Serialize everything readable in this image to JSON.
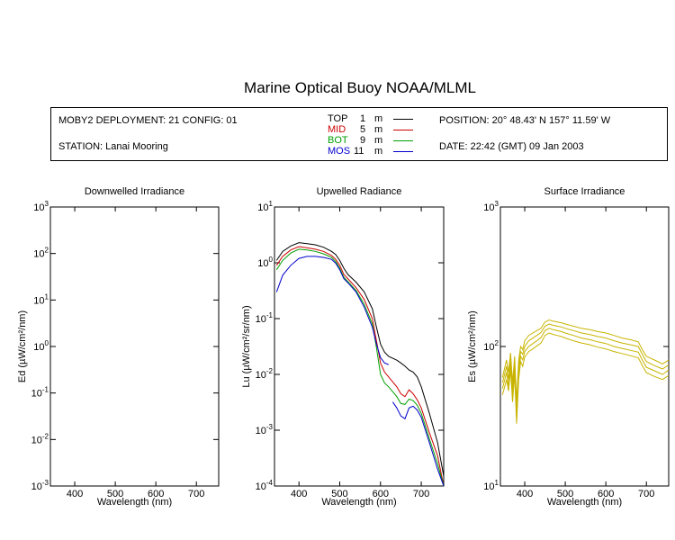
{
  "title": "Marine Optical Buoy NOAA/MLML",
  "info": {
    "deployment": "MOBY2 DEPLOYMENT: 21 CONFIG: 01",
    "station": "STATION: Lanai Mooring",
    "position": "POSITION: 20° 48.43' N   157° 11.59' W",
    "date": "DATE: 22:42 (GMT) 09 Jan 2003",
    "legend": [
      {
        "name": "TOP",
        "depth": "1",
        "unit": "m",
        "color": "#000000"
      },
      {
        "name": "MID",
        "depth": "5",
        "unit": "m",
        "color": "#cc0000"
      },
      {
        "name": "BOT",
        "depth": "9",
        "unit": "m",
        "color": "#00a000"
      },
      {
        "name": "MOS",
        "depth": "11",
        "unit": "m",
        "color": "#0000cc"
      }
    ]
  },
  "chart_data": [
    {
      "type": "line",
      "title": "Downwelled Irradiance",
      "xlabel": "Wavelength (nm)",
      "ylabel": "Ed  (µW/cm²/nm)",
      "yscale": "log",
      "xlim": [
        340,
        755
      ],
      "ylim": [
        0.001,
        1000
      ],
      "xticks": [
        400,
        500,
        600,
        700
      ],
      "yticks": [
        0.001,
        0.01,
        0.1,
        1,
        10,
        100,
        1000
      ],
      "ytick_labels": [
        [
          "10",
          "-3"
        ],
        [
          "10",
          "-2"
        ],
        [
          "10",
          "-1"
        ],
        [
          "10",
          "0"
        ],
        [
          "10",
          "1"
        ],
        [
          "10",
          "2"
        ],
        [
          "10",
          "3"
        ]
      ],
      "series": []
    },
    {
      "type": "line",
      "title": "Upwelled Radiance",
      "xlabel": "Wavelength (nm)",
      "ylabel": "Lu  (µW/cm²/sr/nm)",
      "yscale": "log",
      "xlim": [
        340,
        755
      ],
      "ylim": [
        0.0001,
        10
      ],
      "xticks": [
        400,
        500,
        600,
        700
      ],
      "yticks": [
        0.0001,
        0.001,
        0.01,
        0.1,
        1,
        10
      ],
      "ytick_labels": [
        [
          "10",
          "-4"
        ],
        [
          "10",
          "-3"
        ],
        [
          "10",
          "-2"
        ],
        [
          "10",
          "-1"
        ],
        [
          "10",
          "0"
        ],
        [
          "10",
          "1"
        ]
      ],
      "series": [
        {
          "color": "#000000",
          "x": [
            345,
            360,
            380,
            400,
            420,
            440,
            460,
            480,
            490,
            500,
            510,
            520,
            540,
            560,
            580,
            590,
            600,
            610,
            620,
            640,
            650,
            660,
            670,
            680,
            690,
            700,
            720,
            740,
            755
          ],
          "y": [
            1.1,
            1.6,
            2.0,
            2.3,
            2.2,
            2.1,
            1.9,
            1.6,
            1.4,
            1.1,
            0.8,
            0.62,
            0.45,
            0.3,
            0.15,
            0.07,
            0.035,
            0.025,
            0.021,
            0.018,
            0.016,
            0.014,
            0.012,
            0.011,
            0.009,
            0.006,
            0.002,
            0.0006,
            0.00015
          ]
        },
        {
          "color": "#cc0000",
          "x": [
            345,
            360,
            380,
            400,
            420,
            440,
            460,
            480,
            490,
            500,
            510,
            520,
            540,
            560,
            580,
            590,
            600,
            610,
            620,
            640,
            650,
            660,
            670,
            680,
            690,
            700,
            720,
            740,
            755
          ],
          "y": [
            0.9,
            1.3,
            1.7,
            1.95,
            1.85,
            1.75,
            1.6,
            1.35,
            1.15,
            0.9,
            0.62,
            0.52,
            0.36,
            0.22,
            0.1,
            0.04,
            0.016,
            0.011,
            0.009,
            0.006,
            0.0045,
            0.004,
            0.0053,
            0.0045,
            0.0035,
            0.0025,
            0.0009,
            0.00035,
            0.0001
          ]
        },
        {
          "color": "#00a000",
          "x": [
            345,
            360,
            380,
            400,
            420,
            440,
            460,
            480,
            490,
            500,
            510,
            520,
            540,
            560,
            580,
            590,
            600,
            610,
            620,
            640,
            650,
            660,
            670,
            680,
            690,
            700,
            720,
            740,
            755
          ],
          "y": [
            0.75,
            1.1,
            1.5,
            1.75,
            1.7,
            1.6,
            1.45,
            1.25,
            1.05,
            0.8,
            0.55,
            0.46,
            0.32,
            0.18,
            0.08,
            0.03,
            0.01,
            0.007,
            0.006,
            0.004,
            0.003,
            0.0029,
            0.0036,
            0.0034,
            0.0028,
            0.002,
            0.0007,
            0.00025,
            0.0001
          ]
        },
        {
          "color": "#0000cc",
          "x": [
            345,
            360,
            380,
            400,
            420,
            440,
            460,
            480,
            490,
            500,
            510,
            520,
            540,
            560,
            580,
            590,
            600,
            610,
            620
          ],
          "y": [
            0.3,
            0.6,
            0.9,
            1.2,
            1.3,
            1.3,
            1.25,
            1.15,
            0.98,
            0.75,
            0.52,
            0.44,
            0.3,
            0.16,
            0.07,
            0.035,
            0.02,
            0.016,
            0.015
          ]
        },
        {
          "color": "#0000cc",
          "x": [
            630,
            640,
            650,
            660,
            670,
            680,
            690,
            700,
            720,
            740,
            755
          ],
          "y": [
            0.0032,
            0.0025,
            0.0018,
            0.0016,
            0.0025,
            0.0027,
            0.0023,
            0.0017,
            0.0006,
            0.0002,
            0.0001
          ]
        }
      ]
    },
    {
      "type": "line",
      "title": "Surface Irradiance",
      "xlabel": "Wavelength (nm)",
      "ylabel": "Es  (µW/cm²/nm)",
      "yscale": "log",
      "xlim": [
        340,
        755
      ],
      "ylim": [
        10,
        1000
      ],
      "xticks": [
        400,
        500,
        600,
        700
      ],
      "yticks": [
        10,
        100,
        1000
      ],
      "ytick_labels": [
        [
          "10",
          "1"
        ],
        [
          "10",
          "2"
        ],
        [
          "10",
          "3"
        ]
      ],
      "series": [
        {
          "color": "#c8b400",
          "x": [
            345,
            355,
            360,
            365,
            370,
            375,
            380,
            385,
            390,
            395,
            400,
            410,
            420,
            430,
            440,
            450,
            460,
            470,
            480,
            490,
            500,
            520,
            540,
            560,
            580,
            600,
            620,
            640,
            660,
            680,
            690,
            700,
            720,
            740,
            755
          ],
          "y": [
            60,
            80,
            65,
            90,
            55,
            85,
            40,
            80,
            100,
            95,
            110,
            120,
            125,
            130,
            135,
            150,
            155,
            152,
            150,
            148,
            145,
            140,
            135,
            132,
            128,
            125,
            120,
            115,
            112,
            108,
            95,
            85,
            80,
            75,
            80
          ]
        },
        {
          "color": "#c8b400",
          "x": [
            345,
            355,
            360,
            365,
            370,
            375,
            380,
            385,
            390,
            395,
            400,
            410,
            420,
            430,
            440,
            450,
            460,
            470,
            480,
            490,
            500,
            520,
            540,
            560,
            580,
            600,
            620,
            640,
            660,
            680,
            690,
            700,
            720,
            740,
            755
          ],
          "y": [
            55,
            72,
            58,
            82,
            50,
            78,
            36,
            72,
            92,
            88,
            100,
            110,
            115,
            120,
            126,
            140,
            145,
            142,
            140,
            138,
            135,
            130,
            125,
            122,
            118,
            115,
            110,
            106,
            103,
            100,
            88,
            78,
            73,
            69,
            74
          ]
        },
        {
          "color": "#c8b400",
          "x": [
            345,
            355,
            360,
            365,
            370,
            375,
            380,
            385,
            390,
            395,
            400,
            410,
            420,
            430,
            440,
            450,
            460,
            470,
            480,
            490,
            500,
            520,
            540,
            560,
            580,
            600,
            620,
            640,
            660,
            680,
            690,
            700,
            720,
            740,
            755
          ],
          "y": [
            50,
            65,
            52,
            75,
            45,
            70,
            32,
            65,
            85,
            80,
            92,
            100,
            105,
            110,
            116,
            130,
            135,
            132,
            130,
            128,
            125,
            120,
            115,
            112,
            108,
            105,
            100,
            97,
            94,
            91,
            80,
            71,
            67,
            63,
            68
          ]
        },
        {
          "color": "#c8b400",
          "x": [
            345,
            355,
            360,
            365,
            370,
            375,
            380,
            385,
            390,
            395,
            400,
            410,
            420,
            430,
            440,
            450,
            460,
            470,
            480,
            490,
            500,
            520,
            540,
            560,
            580,
            600,
            620,
            640,
            660,
            680,
            690,
            700,
            720,
            740,
            755
          ],
          "y": [
            45,
            58,
            48,
            68,
            40,
            63,
            28,
            58,
            78,
            72,
            84,
            92,
            96,
            101,
            106,
            120,
            125,
            122,
            120,
            118,
            115,
            110,
            106,
            103,
            99,
            96,
            92,
            89,
            86,
            83,
            73,
            65,
            61,
            58,
            62
          ]
        }
      ]
    }
  ]
}
